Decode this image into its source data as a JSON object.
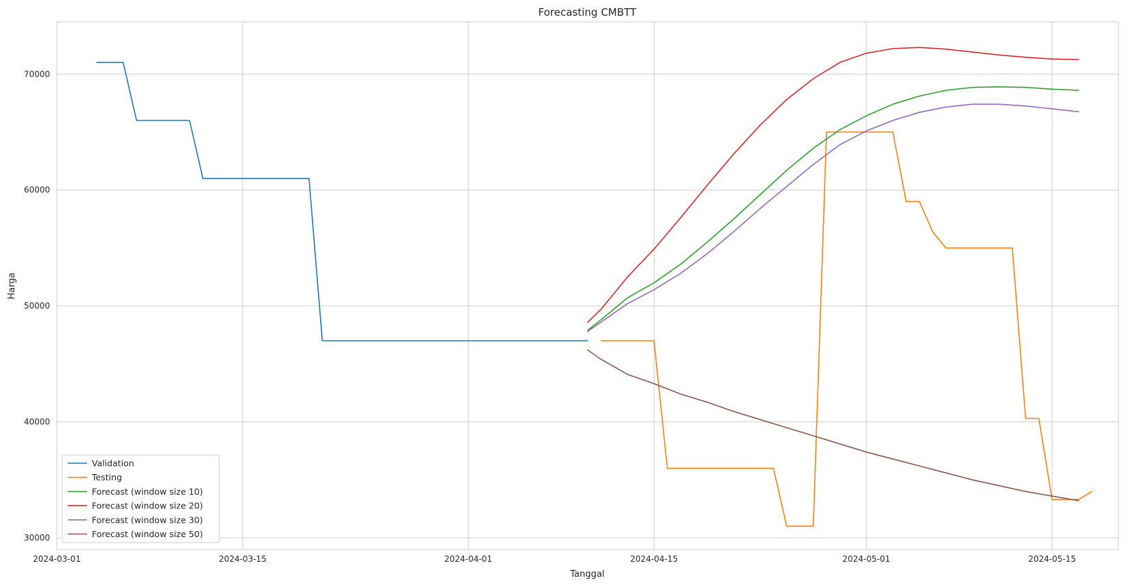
{
  "chart_data": {
    "type": "line",
    "title": "Forecasting CMBTT",
    "xlabel": "Tanggal",
    "ylabel": "Harga",
    "xlim": [
      "2024-03-01",
      "2024-05-20"
    ],
    "ylim": [
      29000,
      74500
    ],
    "x_ticks": [
      "2024-03-01",
      "2024-03-15",
      "2024-04-01",
      "2024-04-15",
      "2024-05-01",
      "2024-05-15"
    ],
    "y_ticks": [
      30000,
      40000,
      50000,
      60000,
      70000
    ],
    "grid": true,
    "legend_position": "lower-left",
    "series": [
      {
        "name": "Validation",
        "color": "#1f77b4",
        "points": [
          [
            "2024-03-04",
            71000
          ],
          [
            "2024-03-06",
            71000
          ],
          [
            "2024-03-07",
            66000
          ],
          [
            "2024-03-11",
            66000
          ],
          [
            "2024-03-12",
            61000
          ],
          [
            "2024-03-20",
            61000
          ],
          [
            "2024-03-21",
            47000
          ],
          [
            "2024-04-10",
            47000
          ]
        ]
      },
      {
        "name": "Testing",
        "color": "#ff7f0e",
        "points": [
          [
            "2024-04-11",
            47000
          ],
          [
            "2024-04-15",
            47000
          ],
          [
            "2024-04-16",
            36000
          ],
          [
            "2024-04-24",
            36000
          ],
          [
            "2024-04-25",
            31000
          ],
          [
            "2024-04-27",
            31000
          ],
          [
            "2024-04-28",
            65000
          ],
          [
            "2024-05-03",
            65000
          ],
          [
            "2024-05-04",
            59000
          ],
          [
            "2024-05-05",
            59000
          ],
          [
            "2024-05-06",
            56400
          ],
          [
            "2024-05-07",
            55000
          ],
          [
            "2024-05-12",
            55000
          ],
          [
            "2024-05-13",
            40300
          ],
          [
            "2024-05-14",
            40300
          ],
          [
            "2024-05-15",
            33300
          ],
          [
            "2024-05-17",
            33300
          ],
          [
            "2024-05-18",
            34000
          ]
        ]
      },
      {
        "name": "Forecast (window size 10)",
        "color": "#2ca02c",
        "points": [
          [
            "2024-04-10",
            47900
          ],
          [
            "2024-04-11",
            48800
          ],
          [
            "2024-04-13",
            50700
          ],
          [
            "2024-04-15",
            52000
          ],
          [
            "2024-04-17",
            53600
          ],
          [
            "2024-04-19",
            55500
          ],
          [
            "2024-04-21",
            57500
          ],
          [
            "2024-04-23",
            59600
          ],
          [
            "2024-04-25",
            61700
          ],
          [
            "2024-04-27",
            63600
          ],
          [
            "2024-04-29",
            65200
          ],
          [
            "2024-05-01",
            66400
          ],
          [
            "2024-05-03",
            67400
          ],
          [
            "2024-05-05",
            68100
          ],
          [
            "2024-05-07",
            68600
          ],
          [
            "2024-05-09",
            68850
          ],
          [
            "2024-05-11",
            68900
          ],
          [
            "2024-05-13",
            68850
          ],
          [
            "2024-05-15",
            68700
          ],
          [
            "2024-05-17",
            68600
          ]
        ]
      },
      {
        "name": "Forecast (window size 20)",
        "color": "#d62728",
        "points": [
          [
            "2024-04-10",
            48600
          ],
          [
            "2024-04-11",
            49700
          ],
          [
            "2024-04-13",
            52500
          ],
          [
            "2024-04-15",
            54900
          ],
          [
            "2024-04-17",
            57600
          ],
          [
            "2024-04-19",
            60400
          ],
          [
            "2024-04-21",
            63100
          ],
          [
            "2024-04-23",
            65600
          ],
          [
            "2024-04-25",
            67800
          ],
          [
            "2024-04-27",
            69600
          ],
          [
            "2024-04-29",
            71000
          ],
          [
            "2024-05-01",
            71800
          ],
          [
            "2024-05-03",
            72200
          ],
          [
            "2024-05-05",
            72300
          ],
          [
            "2024-05-07",
            72150
          ],
          [
            "2024-05-09",
            71900
          ],
          [
            "2024-05-11",
            71650
          ],
          [
            "2024-05-13",
            71450
          ],
          [
            "2024-05-15",
            71300
          ],
          [
            "2024-05-17",
            71250
          ]
        ]
      },
      {
        "name": "Forecast (window size 30)",
        "color": "#9467bd",
        "points": [
          [
            "2024-04-10",
            47800
          ],
          [
            "2024-04-11",
            48600
          ],
          [
            "2024-04-13",
            50200
          ],
          [
            "2024-04-15",
            51400
          ],
          [
            "2024-04-17",
            52800
          ],
          [
            "2024-04-19",
            54500
          ],
          [
            "2024-04-21",
            56400
          ],
          [
            "2024-04-23",
            58400
          ],
          [
            "2024-04-25",
            60300
          ],
          [
            "2024-04-27",
            62200
          ],
          [
            "2024-04-29",
            63900
          ],
          [
            "2024-05-01",
            65100
          ],
          [
            "2024-05-03",
            66000
          ],
          [
            "2024-05-05",
            66700
          ],
          [
            "2024-05-07",
            67150
          ],
          [
            "2024-05-09",
            67400
          ],
          [
            "2024-05-11",
            67400
          ],
          [
            "2024-05-13",
            67250
          ],
          [
            "2024-05-15",
            67000
          ],
          [
            "2024-05-17",
            66750
          ]
        ]
      },
      {
        "name": "Forecast (window size 50)",
        "color": "#8c564b",
        "points": [
          [
            "2024-04-10",
            46200
          ],
          [
            "2024-04-11",
            45400
          ],
          [
            "2024-04-13",
            44100
          ],
          [
            "2024-04-15",
            43300
          ],
          [
            "2024-04-17",
            42400
          ],
          [
            "2024-04-19",
            41700
          ],
          [
            "2024-04-21",
            40900
          ],
          [
            "2024-04-23",
            40200
          ],
          [
            "2024-04-25",
            39500
          ],
          [
            "2024-04-27",
            38800
          ],
          [
            "2024-04-29",
            38100
          ],
          [
            "2024-05-01",
            37400
          ],
          [
            "2024-05-03",
            36800
          ],
          [
            "2024-05-05",
            36200
          ],
          [
            "2024-05-07",
            35600
          ],
          [
            "2024-05-09",
            35000
          ],
          [
            "2024-05-11",
            34500
          ],
          [
            "2024-05-13",
            34000
          ],
          [
            "2024-05-15",
            33600
          ],
          [
            "2024-05-17",
            33200
          ]
        ]
      }
    ]
  }
}
